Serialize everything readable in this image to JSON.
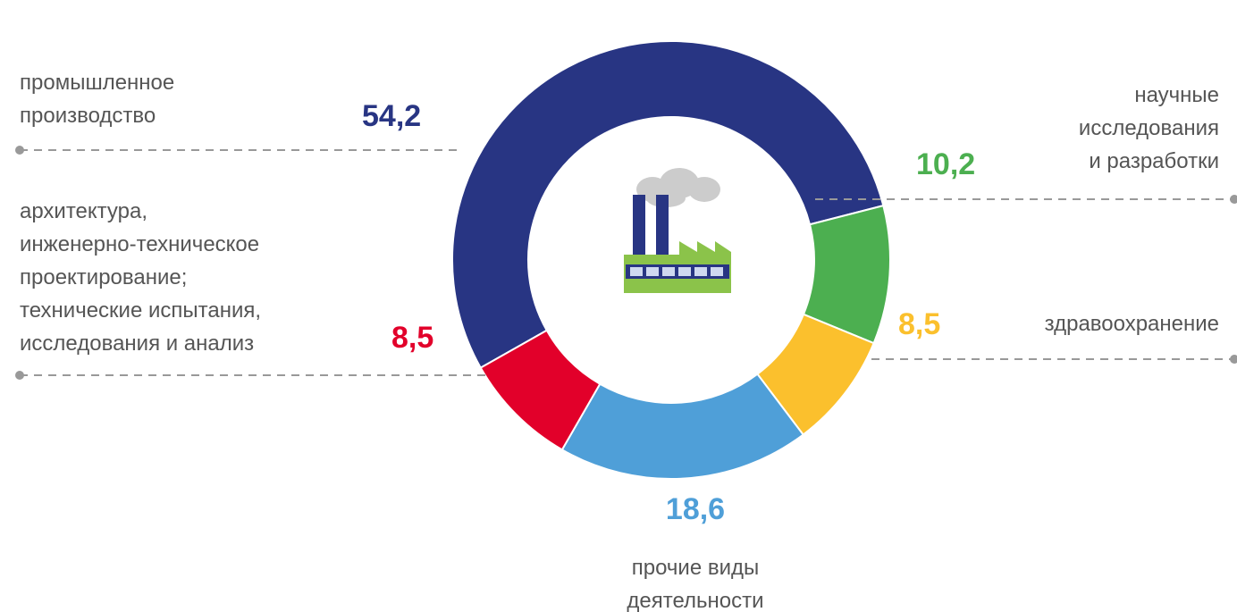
{
  "chart_data": {
    "type": "donut",
    "categories": [
      "промышленное\nпроизводство",
      "научные\nисследования\nи разработки",
      "здравоохранение",
      "прочие виды\nдеятельности",
      "архитектура,\nинженерно-техническое\nпроектирование;\nтехнические испытания,\nисследования и анализ"
    ],
    "values": [
      54.2,
      10.2,
      8.5,
      18.6,
      8.5
    ],
    "value_labels": [
      "54,2",
      "10,2",
      "8,5",
      "18,6",
      "8,5"
    ],
    "colors": [
      "#283583",
      "#4caf50",
      "#fbc02d",
      "#4f9fd8",
      "#e2002a"
    ]
  }
}
